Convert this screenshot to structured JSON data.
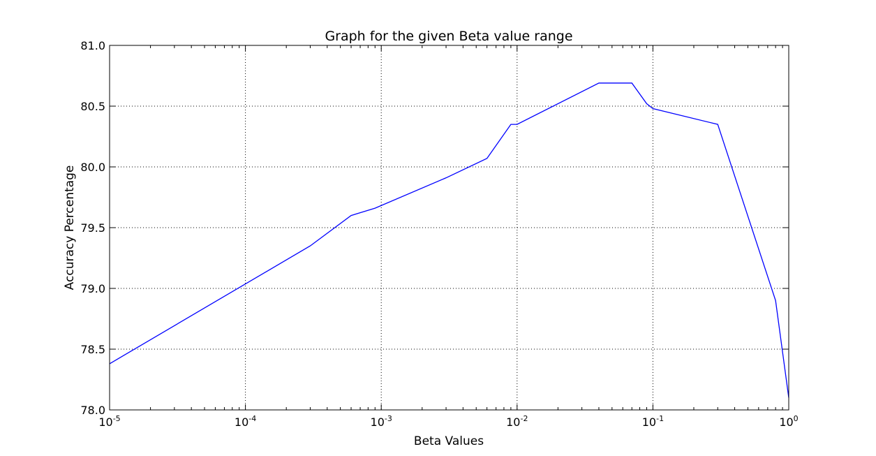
{
  "chart_data": {
    "type": "line",
    "title": "Graph for the given Beta value range",
    "xlabel": "Beta Values",
    "ylabel": "Accuracy Percentage",
    "xscale": "log",
    "xlim": [
      1e-05,
      1
    ],
    "ylim": [
      78.0,
      81.0
    ],
    "grid": true,
    "x_ticks": [
      {
        "value": 1e-05,
        "base": "10",
        "exp": "-5"
      },
      {
        "value": 0.0001,
        "base": "10",
        "exp": "-4"
      },
      {
        "value": 0.001,
        "base": "10",
        "exp": "-3"
      },
      {
        "value": 0.01,
        "base": "10",
        "exp": "-2"
      },
      {
        "value": 0.1,
        "base": "10",
        "exp": "-1"
      },
      {
        "value": 1,
        "base": "10",
        "exp": "0"
      }
    ],
    "y_ticks": [
      {
        "value": 78.0,
        "label": "78.0"
      },
      {
        "value": 78.5,
        "label": "78.5"
      },
      {
        "value": 79.0,
        "label": "79.0"
      },
      {
        "value": 79.5,
        "label": "79.5"
      },
      {
        "value": 80.0,
        "label": "80.0"
      },
      {
        "value": 80.5,
        "label": "80.5"
      },
      {
        "value": 81.0,
        "label": "81.0"
      }
    ],
    "series": [
      {
        "color": "#0000ff",
        "x": [
          1e-05,
          0.0003,
          0.0006,
          0.0009,
          0.003,
          0.006,
          0.009,
          0.01,
          0.04,
          0.07,
          0.09,
          0.1,
          0.3,
          0.8,
          1.0
        ],
        "y": [
          78.38,
          79.35,
          79.6,
          79.66,
          79.91,
          80.07,
          80.35,
          80.35,
          80.69,
          80.69,
          80.52,
          80.48,
          80.35,
          78.9,
          78.1
        ]
      }
    ]
  }
}
